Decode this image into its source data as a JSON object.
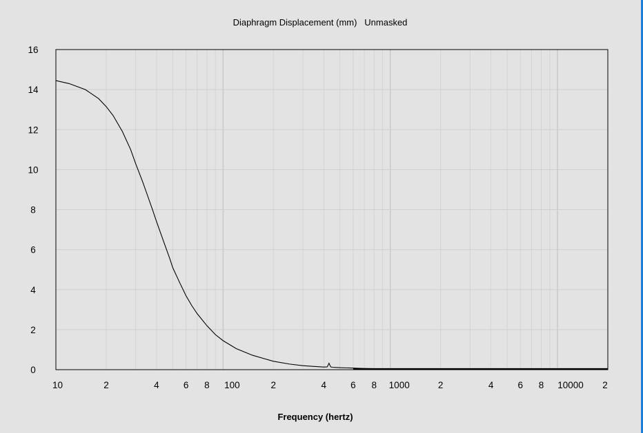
{
  "chart_data": {
    "type": "line",
    "title": "Diaphragm Displacement (mm)   Unmasked",
    "xlabel": "Frequency (hertz)",
    "ylabel": "",
    "xscale": "log",
    "xlim": [
      10,
      20000
    ],
    "ylim": [
      0,
      16
    ],
    "grid": true,
    "legend": "none",
    "yticks": [
      0,
      2,
      4,
      6,
      8,
      10,
      12,
      14,
      16
    ],
    "xticks": [
      {
        "value": 10,
        "label": "10"
      },
      {
        "value": 20,
        "label": "2"
      },
      {
        "value": 40,
        "label": "4"
      },
      {
        "value": 60,
        "label": "6"
      },
      {
        "value": 80,
        "label": "8"
      },
      {
        "value": 100,
        "label": "100"
      },
      {
        "value": 200,
        "label": "2"
      },
      {
        "value": 400,
        "label": "4"
      },
      {
        "value": 600,
        "label": "6"
      },
      {
        "value": 800,
        "label": "8"
      },
      {
        "value": 1000,
        "label": "1000"
      },
      {
        "value": 2000,
        "label": "2"
      },
      {
        "value": 4000,
        "label": "4"
      },
      {
        "value": 6000,
        "label": "6"
      },
      {
        "value": 8000,
        "label": "8"
      },
      {
        "value": 10000,
        "label": "10000"
      },
      {
        "value": 20000,
        "label": "2"
      }
    ],
    "series": [
      {
        "color": "#000000",
        "x": [
          10,
          12,
          15,
          18,
          20,
          22,
          25,
          28,
          30,
          33,
          35,
          38,
          40,
          42,
          45,
          48,
          50,
          55,
          60,
          65,
          70,
          80,
          90,
          100,
          120,
          150,
          200,
          250,
          300,
          350,
          400,
          420,
          430,
          440,
          450,
          500,
          550,
          600,
          700,
          800,
          1000,
          2000,
          5000,
          10000,
          20000
        ],
        "y": [
          14.45,
          14.3,
          14.0,
          13.55,
          13.15,
          12.7,
          11.9,
          11.0,
          10.3,
          9.4,
          8.8,
          7.95,
          7.4,
          6.9,
          6.2,
          5.55,
          5.1,
          4.35,
          3.7,
          3.2,
          2.8,
          2.2,
          1.75,
          1.45,
          1.05,
          0.72,
          0.42,
          0.28,
          0.2,
          0.16,
          0.13,
          0.14,
          0.32,
          0.14,
          0.12,
          0.1,
          0.09,
          0.08,
          0.06,
          0.05,
          0.04,
          0.03,
          0.02,
          0.02,
          0.02
        ]
      }
    ]
  }
}
